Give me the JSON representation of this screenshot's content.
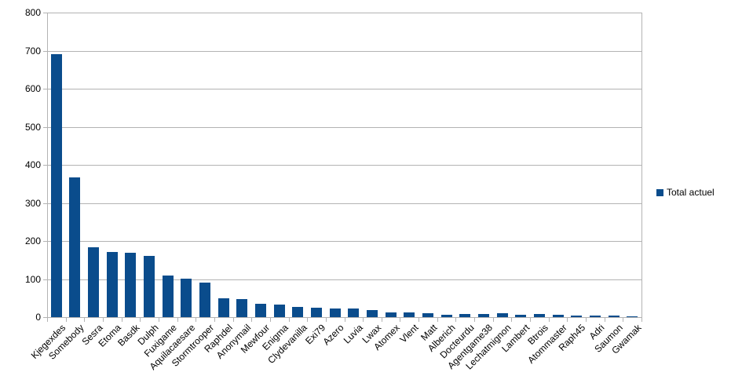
{
  "chart_data": {
    "type": "bar",
    "title": "",
    "xlabel": "",
    "ylabel": "",
    "categories": [
      "Kjegexdes",
      "Somebody",
      "Sesra",
      "Etoma",
      "Basdk",
      "Dulph",
      "Fuxigame",
      "Aquilacaesare",
      "Stormtrooper",
      "Raphdel",
      "Anonymail",
      "Mewfour",
      "Enigma",
      "Clydevanilla",
      "Exi79",
      "Azero",
      "Luvia",
      "Lwax",
      "Atomex",
      "Vlent",
      "Matt",
      "Alberich",
      "Docteurdu",
      "Agentgame38",
      "Lechatmignon",
      "Lambert",
      "Btrois",
      "Atommaster",
      "Raph45",
      "Adri",
      "Saumon",
      "Gwamak"
    ],
    "series": [
      {
        "name": "Total actuel",
        "values": [
          690,
          368,
          183,
          171,
          169,
          161,
          109,
          101,
          90,
          50,
          47,
          35,
          33,
          27,
          24,
          23,
          22,
          19,
          13,
          13,
          10,
          7,
          9,
          8,
          10,
          7,
          8,
          7,
          5,
          5,
          5,
          2
        ]
      }
    ],
    "ylim": [
      0,
      800
    ],
    "yticks": [
      0,
      100,
      200,
      300,
      400,
      500,
      600,
      700,
      800
    ],
    "grid": true,
    "legend_position": "right",
    "bar_color": "#0a4c8c",
    "grid_color": "#b3b3b3",
    "text_color": "#000000",
    "background_color": "#ffffff"
  },
  "legend": {
    "label": "Total actuel"
  }
}
